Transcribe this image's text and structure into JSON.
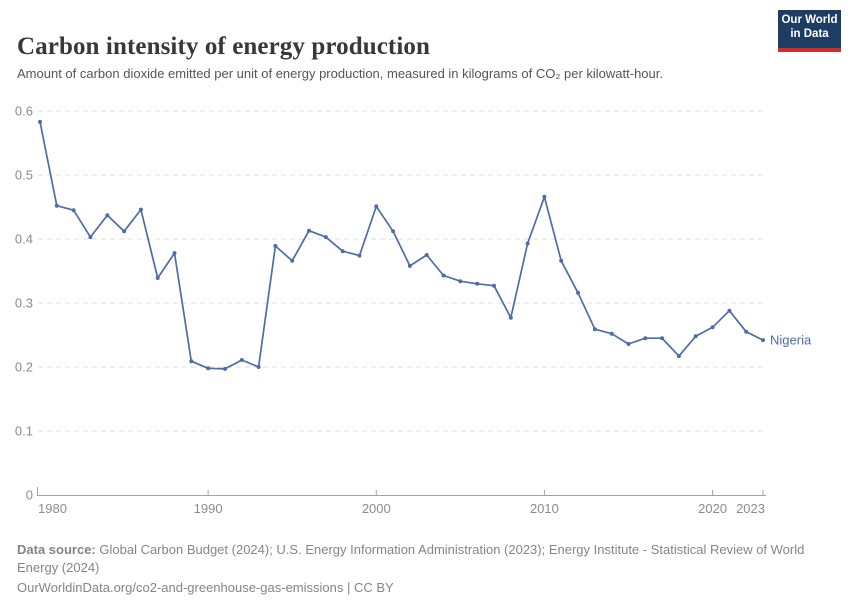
{
  "header": {
    "title": "Carbon intensity of energy production",
    "subtitle": "Amount of carbon dioxide emitted per unit of energy production, measured in kilograms of CO₂ per kilowatt-hour.",
    "logo": {
      "line1": "Our World",
      "line2": "in Data",
      "bg_color": "#1d3d63",
      "stripe_color": "#cf2d27"
    }
  },
  "chart_data": {
    "type": "line",
    "title": "Carbon intensity of energy production",
    "xlabel": "",
    "ylabel": "",
    "xlim": [
      1980,
      2023
    ],
    "ylim": [
      0,
      0.6
    ],
    "grid": "horizontal-dashed",
    "legend_position": "end-of-line-label",
    "x_ticks": [
      1980,
      1990,
      2000,
      2010,
      2020,
      2023
    ],
    "y_ticks": [
      {
        "value": 0,
        "label": "0"
      },
      {
        "value": 0.1,
        "label": "0.1"
      },
      {
        "value": 0.2,
        "label": "0.2"
      },
      {
        "value": 0.3,
        "label": "0.3"
      },
      {
        "value": 0.4,
        "label": "0.4"
      },
      {
        "value": 0.5,
        "label": "0.5"
      },
      {
        "value": 0.6,
        "label": "0.6"
      }
    ],
    "grid_color": "#dcdcdc",
    "axis_color": "#a3a3a3",
    "tick_color": "#8c8c8c",
    "series": [
      {
        "name": "Nigeria",
        "color": "#4d6ca8",
        "x": [
          1980,
          1981,
          1982,
          1983,
          1984,
          1985,
          1986,
          1987,
          1988,
          1989,
          1990,
          1991,
          1992,
          1993,
          1994,
          1995,
          1996,
          1997,
          1998,
          1999,
          2000,
          2001,
          2002,
          2003,
          2004,
          2005,
          2006,
          2007,
          2008,
          2009,
          2010,
          2011,
          2012,
          2013,
          2014,
          2015,
          2016,
          2017,
          2018,
          2019,
          2020,
          2021,
          2022,
          2023
        ],
        "values": [
          0.583,
          0.452,
          0.445,
          0.403,
          0.437,
          0.412,
          0.446,
          0.339,
          0.378,
          0.209,
          0.198,
          0.197,
          0.211,
          0.2,
          0.389,
          0.366,
          0.413,
          0.403,
          0.381,
          0.374,
          0.451,
          0.412,
          0.358,
          0.375,
          0.343,
          0.334,
          0.33,
          0.327,
          0.277,
          0.393,
          0.466,
          0.366,
          0.316,
          0.259,
          0.252,
          0.236,
          0.245,
          0.245,
          0.217,
          0.248,
          0.262,
          0.288,
          0.255,
          0.242
        ]
      }
    ]
  },
  "footer": {
    "source_label": "Data source:",
    "source_text": "Global Carbon Budget (2024); U.S. Energy Information Administration (2023); Energy Institute - Statistical Review of World Energy (2024)",
    "url_line": "OurWorldinData.org/co2-and-greenhouse-gas-emissions | CC BY"
  }
}
